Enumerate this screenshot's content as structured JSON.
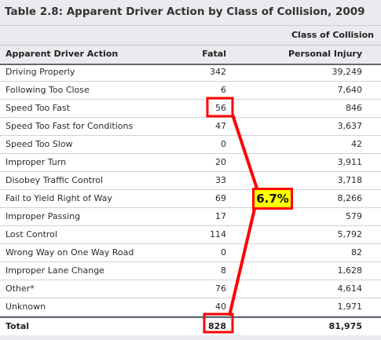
{
  "title": "Table 2.8: Apparent Driver Action by Class of Collision, 2009",
  "group_header": "Class of Collision",
  "columns": {
    "action": "Apparent Driver Action",
    "fatal": "Fatal",
    "injury": "Personal Injury"
  },
  "rows": [
    {
      "action": "Driving Properly",
      "fatal": "342",
      "injury": "39,249"
    },
    {
      "action": "Following Too Close",
      "fatal": "6",
      "injury": "7,640"
    },
    {
      "action": "Speed Too Fast",
      "fatal": "56",
      "injury": "846"
    },
    {
      "action": "Speed Too Fast for Conditions",
      "fatal": "47",
      "injury": "3,637"
    },
    {
      "action": "Speed Too Slow",
      "fatal": "0",
      "injury": "42"
    },
    {
      "action": "Improper Turn",
      "fatal": "20",
      "injury": "3,911"
    },
    {
      "action": "Disobey Traffic Control",
      "fatal": "33",
      "injury": "3,718"
    },
    {
      "action": "Fail to Yield Right of Way",
      "fatal": "69",
      "injury": "8,266"
    },
    {
      "action": "Improper Passing",
      "fatal": "17",
      "injury": "579"
    },
    {
      "action": "Lost Control",
      "fatal": "114",
      "injury": "5,792"
    },
    {
      "action": "Wrong Way on One Way Road",
      "fatal": "0",
      "injury": "82"
    },
    {
      "action": "Improper Lane Change",
      "fatal": "8",
      "injury": "1,628"
    },
    {
      "action": "Other*",
      "fatal": "76",
      "injury": "4,614"
    },
    {
      "action": "Unknown",
      "fatal": "40",
      "injury": "1,971"
    }
  ],
  "total": {
    "label": "Total",
    "fatal": "828",
    "injury": "81,975"
  },
  "annotation": {
    "text": "6.7%",
    "highlight_color": "#ffff00",
    "outline_color": "#ff0000"
  }
}
